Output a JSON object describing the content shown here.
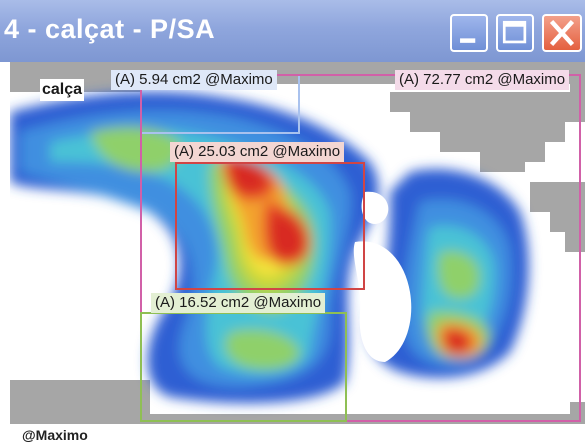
{
  "window": {
    "title": "4 - calçat - P/SA",
    "minimize_icon": "minimize-icon",
    "maximize_icon": "maximize-icon",
    "close_icon": "close-icon"
  },
  "canvas": {
    "view_label": "calça",
    "regions": [
      {
        "area": "(A) 5.94 cm2 @Maximo",
        "color": "#a9c2ee"
      },
      {
        "area": "(A) 72.77 cm2 @Maximo",
        "color": "#d160a8"
      },
      {
        "area": "(A) 25.03 cm2 @Maximo",
        "color": "#d04545"
      },
      {
        "area": "(A) 16.52 cm2 @Maximo",
        "color": "#8fbf54"
      }
    ],
    "heat_colors": [
      "#2d5fd3",
      "#3f8fe0",
      "#49c2d6",
      "#8fd06a",
      "#c6d63a",
      "#f3e33b",
      "#f3a22e",
      "#e8502a",
      "#d82a22"
    ]
  },
  "status": {
    "text": "@Maximo"
  }
}
